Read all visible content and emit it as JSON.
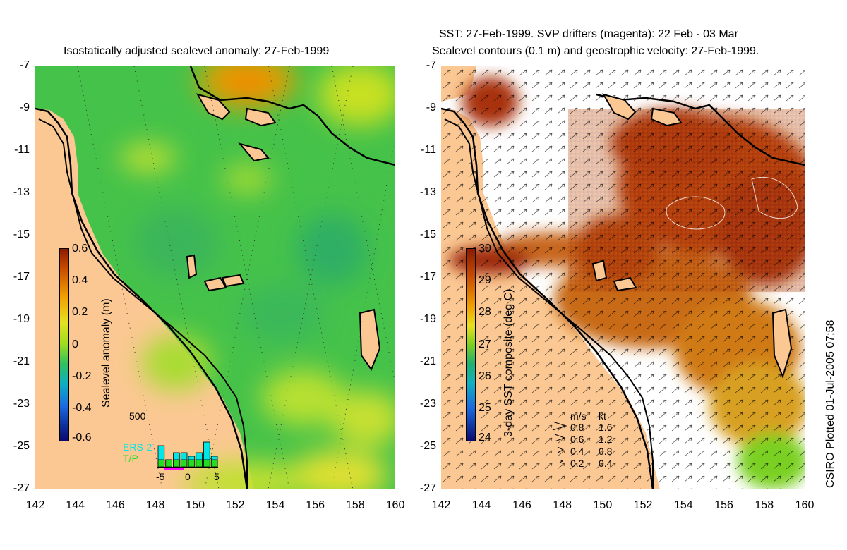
{
  "left_panel": {
    "title": "Isostatically adjusted sealevel anomaly: 27-Feb-1999",
    "colorbar": {
      "label": "Sealevel anomaly (m)",
      "ticks": [
        "0.6",
        "0.4",
        "0.2",
        "0",
        "-0.2",
        "-0.4",
        "-0.6"
      ],
      "range": [
        -0.6,
        0.6
      ]
    },
    "inset": {
      "ymax_label": "500",
      "x_ticks": [
        "-5",
        "0",
        "5"
      ],
      "legend": [
        {
          "name": "ERS-2",
          "color": "#00e5e5"
        },
        {
          "name": "T/P",
          "color": "#22dd22"
        }
      ],
      "bars_ers2": [
        6,
        2,
        4,
        4,
        3,
        4,
        7,
        3
      ],
      "bars_tp": [
        2,
        2,
        2,
        2,
        2,
        2,
        2,
        2
      ]
    }
  },
  "right_panel": {
    "title_line1": "SST: 27-Feb-1999. SVP drifters (magenta): 22 Feb - 03 Mar",
    "title_line2": "Sealevel contours (0.1 m) and geostrophic velocity: 27-Feb-1999.",
    "colorbar": {
      "label": "3-day SST composite (deg C)",
      "ticks": [
        "30",
        "29",
        "28",
        "27",
        "26",
        "25",
        "24"
      ],
      "range": [
        24,
        30
      ]
    },
    "velocity_legend": {
      "header_ms": "m/s",
      "header_kt": "kt",
      "rows": [
        {
          "ms": "0.8",
          "kt": "1.6"
        },
        {
          "ms": "0.6",
          "kt": "1.2"
        },
        {
          "ms": "0.4",
          "kt": "0.8"
        },
        {
          "ms": "0.2",
          "kt": "0.4"
        }
      ]
    }
  },
  "axes": {
    "lat_ticks": [
      "-7",
      "-9",
      "-11",
      "-13",
      "-15",
      "-17",
      "-19",
      "-21",
      "-23",
      "-25",
      "-27"
    ],
    "lon_ticks": [
      "142",
      "144",
      "146",
      "148",
      "150",
      "152",
      "154",
      "156",
      "158",
      "160"
    ],
    "lat_range": [
      -27,
      -7
    ],
    "lon_range": [
      142,
      160
    ]
  },
  "credit": "CSIRO Plotted 01-Jul-2005 07:58",
  "colors": {
    "land": "#fbc893",
    "sla_mid": "#3fbf4a",
    "sst_warm": "#b23a0a",
    "clouds": "#ffffff"
  },
  "chart_data": [
    {
      "type": "heatmap",
      "title": "Isostatically adjusted sealevel anomaly: 27-Feb-1999",
      "x_axis": "longitude",
      "y_axis": "latitude",
      "xlim": [
        142,
        160
      ],
      "ylim": [
        -27,
        -7
      ],
      "colorbar_label": "Sealevel anomaly (m)",
      "colorbar_range": [
        -0.6,
        0.6
      ]
    },
    {
      "type": "heatmap",
      "title": "SST: 27-Feb-1999. SVP drifters (magenta): 22 Feb - 03 Mar / Sealevel contours (0.1 m) and geostrophic velocity: 27-Feb-1999.",
      "x_axis": "longitude",
      "y_axis": "latitude",
      "xlim": [
        142,
        160
      ],
      "ylim": [
        -27,
        -7
      ],
      "colorbar_label": "3-day SST composite (deg C)",
      "colorbar_range": [
        24,
        30
      ]
    }
  ]
}
